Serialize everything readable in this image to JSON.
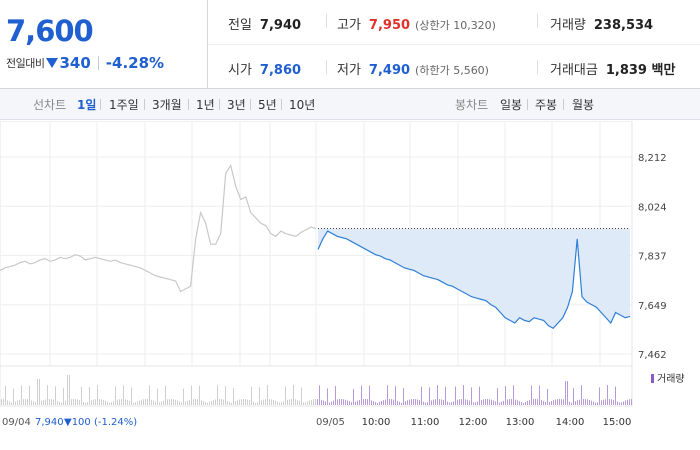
{
  "summary": {
    "price": "7,600",
    "diff_label": "전일대비",
    "diff_amount": "340",
    "diff_percent": "-4.28%",
    "prev_close": {
      "label": "전일",
      "value": "7,940"
    },
    "open": {
      "label": "시가",
      "value": "7,860"
    },
    "high": {
      "label": "고가",
      "value": "7,950",
      "sub": "(상한가 10,320)"
    },
    "low": {
      "label": "저가",
      "value": "7,490",
      "sub": "(하한가 5,560)"
    },
    "volume": {
      "label": "거래량",
      "value": "238,534"
    },
    "amount": {
      "label": "거래대금",
      "value": "1,839 백만"
    }
  },
  "tabs": {
    "line_label": "선차트",
    "line_items": [
      "1일",
      "1주일",
      "3개월",
      "1년",
      "3년",
      "5년",
      "10년"
    ],
    "active": "1일",
    "candle_label": "봉차트",
    "candle_items": [
      "일봉",
      "주봉",
      "월봉"
    ]
  },
  "chart_data": {
    "type": "line",
    "yticks": [
      "8,212",
      "8,024",
      "7,837",
      "7,649",
      "7,462"
    ],
    "ylim": [
      7462,
      8212
    ],
    "prev_day": {
      "label": "09/04",
      "info_close": "7,940",
      "info_change": "▼100",
      "info_pct": "(-1.24%)",
      "values": [
        7780,
        7790,
        7795,
        7800,
        7810,
        7815,
        7805,
        7810,
        7820,
        7825,
        7815,
        7820,
        7830,
        7825,
        7830,
        7840,
        7835,
        7820,
        7825,
        7830,
        7825,
        7820,
        7815,
        7820,
        7810,
        7805,
        7800,
        7795,
        7790,
        7780,
        7770,
        7760,
        7755,
        7750,
        7745,
        7740,
        7700,
        7710,
        7720,
        7900,
        8000,
        7960,
        7880,
        7880,
        7920,
        8150,
        8180,
        8100,
        8050,
        8060,
        8000,
        7980,
        7960,
        7950,
        7920,
        7910,
        7930,
        7920,
        7915,
        7910,
        7925,
        7935,
        7945,
        7940
      ]
    },
    "today": {
      "label": "09/05",
      "xticks": [
        "10:00",
        "11:00",
        "12:00",
        "13:00",
        "14:00",
        "15:00"
      ],
      "reference": 7940,
      "values": [
        7860,
        7900,
        7930,
        7920,
        7910,
        7905,
        7900,
        7890,
        7880,
        7870,
        7860,
        7850,
        7840,
        7835,
        7825,
        7820,
        7810,
        7800,
        7790,
        7785,
        7780,
        7770,
        7760,
        7755,
        7750,
        7745,
        7735,
        7725,
        7720,
        7710,
        7700,
        7690,
        7680,
        7675,
        7670,
        7665,
        7650,
        7640,
        7620,
        7600,
        7590,
        7580,
        7600,
        7590,
        7585,
        7600,
        7595,
        7590,
        7570,
        7560,
        7580,
        7600,
        7640,
        7700,
        7900,
        7680,
        7660,
        7650,
        7640,
        7620,
        7600,
        7580,
        7620,
        7610,
        7600,
        7605
      ]
    },
    "volume_label": "거래량"
  }
}
